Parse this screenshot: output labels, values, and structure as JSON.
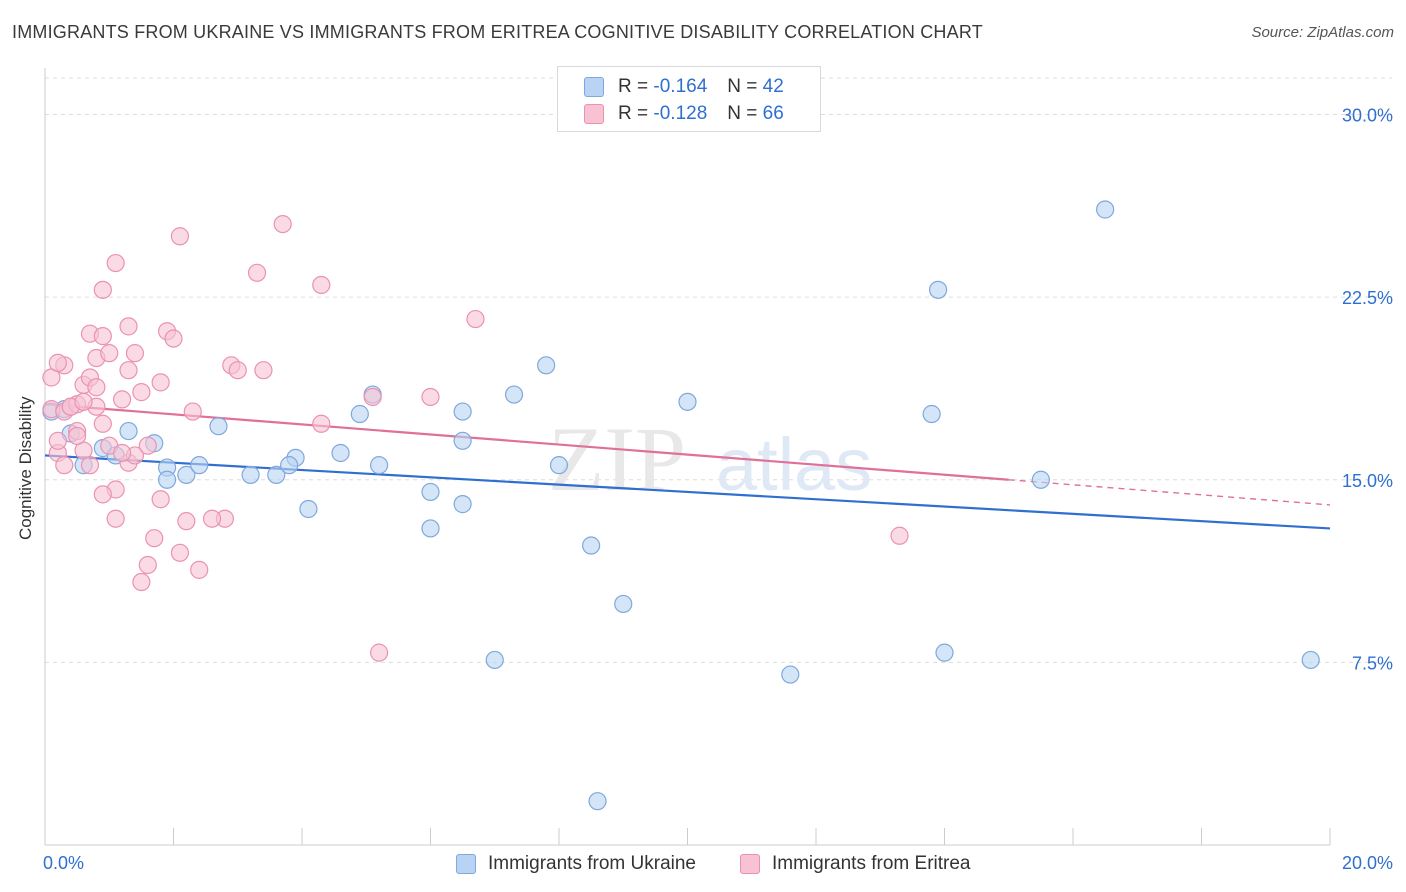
{
  "title": "IMMIGRANTS FROM UKRAINE VS IMMIGRANTS FROM ERITREA COGNITIVE DISABILITY CORRELATION CHART",
  "source": "Source: ZipAtlas.com",
  "watermark": {
    "zip": "ZIP",
    "atlas": "atlas"
  },
  "legend_stats": [
    {
      "r_label": "R =",
      "r_value": "-0.164",
      "n_label": "N =",
      "n_value": "42"
    },
    {
      "r_label": "R =",
      "r_value": "-0.128",
      "n_label": "N =",
      "n_value": "66"
    }
  ],
  "colors": {
    "ukraine_fill": "#b8d3f4",
    "ukraine_stroke": "#7fa8dd",
    "ukraine_line": "#2f6fd0",
    "eritrea_fill": "#f7c3d3",
    "eritrea_stroke": "#eb92b0",
    "eritrea_line": "#e07098",
    "axis_value": "#2f6fd0",
    "grid": "#dddddd"
  },
  "chart_data": {
    "type": "scatter",
    "title": "IMMIGRANTS FROM UKRAINE VS IMMIGRANTS FROM ERITREA COGNITIVE DISABILITY CORRELATION CHART",
    "xlabel": "",
    "ylabel": "Cognitive Disability",
    "xlim": [
      0,
      20
    ],
    "ylim": [
      0,
      31.5
    ],
    "x_tick_labels": [
      "0.0%",
      "20.0%"
    ],
    "y_ticks": [
      7.5,
      15.0,
      22.5,
      30.0
    ],
    "y_tick_labels": [
      "7.5%",
      "15.0%",
      "22.5%",
      "30.0%"
    ],
    "grid": true,
    "legend_position": "bottom",
    "series": [
      {
        "name": "Immigrants from Ukraine",
        "points": [
          [
            0.1,
            17.8
          ],
          [
            0.4,
            16.9
          ],
          [
            0.9,
            16.3
          ],
          [
            1.7,
            16.5
          ],
          [
            0.6,
            15.6
          ],
          [
            1.3,
            17.0
          ],
          [
            1.9,
            15.5
          ],
          [
            1.9,
            15.0
          ],
          [
            2.2,
            15.2
          ],
          [
            2.4,
            15.6
          ],
          [
            2.7,
            17.2
          ],
          [
            3.2,
            15.2
          ],
          [
            3.6,
            15.2
          ],
          [
            3.9,
            15.9
          ],
          [
            4.1,
            13.8
          ],
          [
            4.6,
            16.1
          ],
          [
            4.9,
            17.7
          ],
          [
            5.1,
            18.5
          ],
          [
            5.2,
            15.6
          ],
          [
            6.0,
            14.5
          ],
          [
            6.5,
            14.0
          ],
          [
            6.0,
            13.0
          ],
          [
            6.5,
            16.6
          ],
          [
            6.5,
            17.8
          ],
          [
            7.3,
            18.5
          ],
          [
            7.8,
            19.7
          ],
          [
            8.0,
            15.6
          ],
          [
            8.5,
            12.3
          ],
          [
            7.0,
            7.6
          ],
          [
            9.0,
            9.9
          ],
          [
            10.0,
            18.2
          ],
          [
            11.6,
            7.0
          ],
          [
            13.8,
            17.7
          ],
          [
            13.9,
            22.8
          ],
          [
            14.0,
            7.9
          ],
          [
            15.5,
            15.0
          ],
          [
            16.5,
            26.1
          ],
          [
            19.7,
            7.6
          ],
          [
            0.3,
            17.9
          ],
          [
            1.1,
            16.0
          ],
          [
            8.6,
            1.8
          ],
          [
            3.8,
            15.6
          ]
        ]
      },
      {
        "name": "Immigrants from Eritrea",
        "points": [
          [
            0.1,
            19.2
          ],
          [
            0.1,
            17.9
          ],
          [
            0.2,
            16.1
          ],
          [
            0.3,
            17.8
          ],
          [
            0.3,
            19.7
          ],
          [
            0.4,
            18.0
          ],
          [
            0.5,
            17.0
          ],
          [
            0.5,
            18.1
          ],
          [
            0.6,
            16.2
          ],
          [
            0.6,
            18.9
          ],
          [
            0.7,
            15.6
          ],
          [
            0.7,
            21.0
          ],
          [
            0.7,
            19.2
          ],
          [
            0.8,
            18.8
          ],
          [
            0.8,
            20.0
          ],
          [
            0.9,
            22.8
          ],
          [
            0.9,
            20.9
          ],
          [
            0.9,
            17.3
          ],
          [
            1.0,
            16.4
          ],
          [
            1.0,
            20.2
          ],
          [
            1.1,
            23.9
          ],
          [
            1.1,
            14.6
          ],
          [
            1.1,
            13.4
          ],
          [
            1.2,
            18.3
          ],
          [
            1.3,
            19.5
          ],
          [
            1.3,
            15.7
          ],
          [
            1.3,
            21.3
          ],
          [
            1.4,
            20.2
          ],
          [
            1.4,
            16.0
          ],
          [
            1.5,
            18.6
          ],
          [
            1.5,
            10.8
          ],
          [
            1.6,
            11.5
          ],
          [
            1.7,
            12.6
          ],
          [
            1.8,
            14.2
          ],
          [
            1.8,
            19.0
          ],
          [
            1.9,
            21.1
          ],
          [
            2.0,
            20.8
          ],
          [
            2.1,
            12.0
          ],
          [
            2.1,
            25.0
          ],
          [
            2.2,
            13.3
          ],
          [
            2.3,
            17.8
          ],
          [
            2.4,
            11.3
          ],
          [
            2.8,
            13.4
          ],
          [
            2.9,
            19.7
          ],
          [
            3.0,
            19.5
          ],
          [
            3.3,
            23.5
          ],
          [
            3.4,
            19.5
          ],
          [
            3.7,
            25.5
          ],
          [
            4.3,
            23.0
          ],
          [
            4.3,
            17.3
          ],
          [
            5.1,
            18.4
          ],
          [
            5.2,
            7.9
          ],
          [
            6.0,
            18.4
          ],
          [
            6.7,
            21.6
          ],
          [
            13.3,
            12.7
          ],
          [
            0.2,
            19.8
          ],
          [
            0.4,
            18.0
          ],
          [
            0.5,
            16.8
          ],
          [
            0.2,
            16.6
          ],
          [
            0.8,
            18.0
          ],
          [
            1.2,
            16.1
          ],
          [
            0.3,
            15.6
          ],
          [
            0.9,
            14.4
          ],
          [
            2.6,
            13.4
          ],
          [
            0.6,
            18.2
          ],
          [
            1.6,
            16.4
          ]
        ]
      }
    ],
    "trendlines": [
      {
        "series": "Immigrants from Ukraine",
        "x": [
          0,
          20
        ],
        "y": [
          16.0,
          13.0
        ]
      },
      {
        "series": "Immigrants from Eritrea",
        "x": [
          0,
          15.0
        ],
        "y": [
          18.1,
          15.0
        ],
        "dashed_extension": [
          15.0,
          20.0
        ]
      }
    ]
  }
}
